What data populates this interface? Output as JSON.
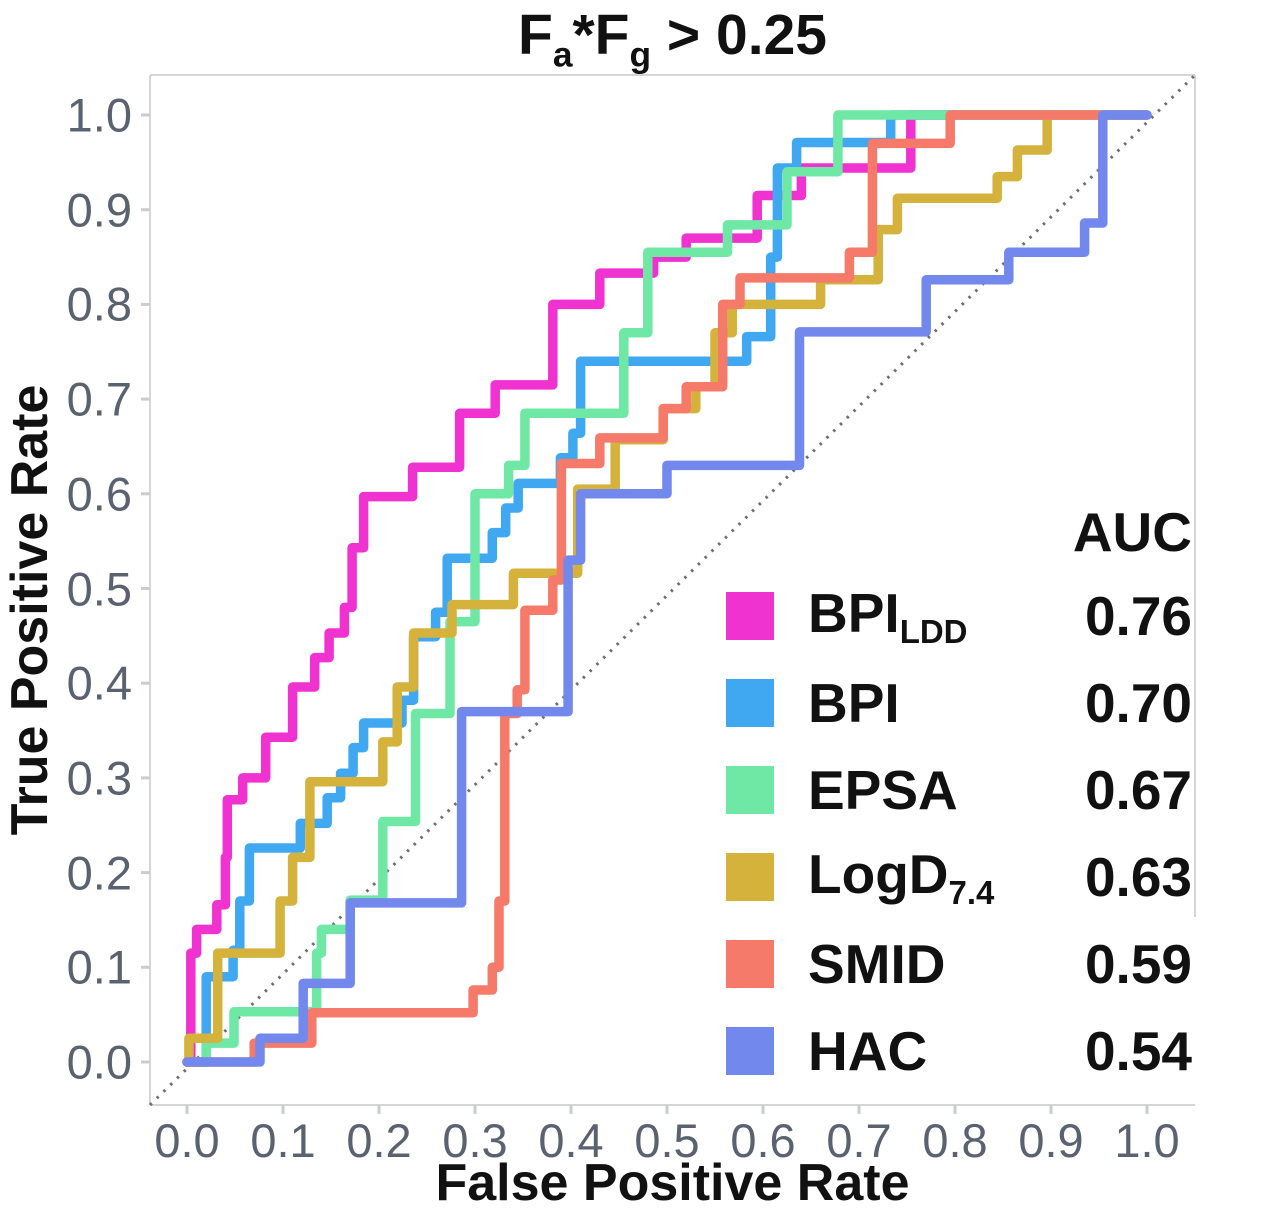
{
  "title": {
    "f1": "F",
    "f1_sub": "a",
    "mid": "*F",
    "f2_sub": "g",
    "tail": " > 0.25"
  },
  "axes": {
    "x_label": "False Positive Rate",
    "y_label": "True Positive Rate",
    "x_ticks": [
      "0.0",
      "0.1",
      "0.2",
      "0.3",
      "0.4",
      "0.5",
      "0.6",
      "0.7",
      "0.8",
      "0.9",
      "1.0"
    ],
    "y_ticks": [
      "0.0",
      "0.1",
      "0.2",
      "0.3",
      "0.4",
      "0.5",
      "0.6",
      "0.7",
      "0.8",
      "0.9",
      "1.0"
    ],
    "x_tick_values": [
      0,
      0.1,
      0.2,
      0.3,
      0.4,
      0.5,
      0.6,
      0.7,
      0.8,
      0.9,
      1.0
    ],
    "y_tick_values": [
      0,
      0.1,
      0.2,
      0.3,
      0.4,
      0.5,
      0.6,
      0.7,
      0.8,
      0.9,
      1.0
    ]
  },
  "legend": {
    "header": "AUC",
    "items": [
      {
        "label": "BPI",
        "sub": "LDD",
        "auc": "0.76",
        "color": "#F032D0"
      },
      {
        "label": "BPI",
        "sub": "",
        "auc": "0.70",
        "color": "#3FA8F0"
      },
      {
        "label": "EPSA",
        "sub": "",
        "auc": "0.67",
        "color": "#6FE8A5"
      },
      {
        "label": "LogD",
        "sub": "7.4",
        "auc": "0.63",
        "color": "#D4B23C"
      },
      {
        "label": "SMID",
        "sub": "",
        "auc": "0.59",
        "color": "#F57A6A"
      },
      {
        "label": "HAC",
        "sub": "",
        "auc": "0.54",
        "color": "#7388EC"
      }
    ]
  },
  "chart_data": {
    "type": "line",
    "subtype": "roc-step-curves",
    "title": "Fa*Fg > 0.25",
    "xlabel": "False Positive Rate",
    "ylabel": "True Positive Rate",
    "xlim": [
      0,
      1
    ],
    "ylim": [
      0,
      1
    ],
    "grid": false,
    "legend_position": "lower right",
    "diagonal_reference_line": {
      "style": "dotted",
      "color": "#6e6e6e",
      "from": [
        0,
        0
      ],
      "to": [
        1,
        1
      ]
    },
    "series": [
      {
        "name": "BPI_LDD",
        "auc": 0.76,
        "color": "#F032D0",
        "points": [
          [
            0,
            0
          ],
          [
            0.004,
            0
          ],
          [
            0.004,
            0.115
          ],
          [
            0.01,
            0.115
          ],
          [
            0.01,
            0.14
          ],
          [
            0.031,
            0.14
          ],
          [
            0.031,
            0.166
          ],
          [
            0.04,
            0.166
          ],
          [
            0.04,
            0.216
          ],
          [
            0.042,
            0.216
          ],
          [
            0.042,
            0.277
          ],
          [
            0.058,
            0.277
          ],
          [
            0.058,
            0.3
          ],
          [
            0.082,
            0.3
          ],
          [
            0.082,
            0.343
          ],
          [
            0.11,
            0.343
          ],
          [
            0.11,
            0.396
          ],
          [
            0.133,
            0.396
          ],
          [
            0.133,
            0.427
          ],
          [
            0.148,
            0.427
          ],
          [
            0.148,
            0.453
          ],
          [
            0.164,
            0.453
          ],
          [
            0.164,
            0.48
          ],
          [
            0.172,
            0.48
          ],
          [
            0.172,
            0.543
          ],
          [
            0.184,
            0.543
          ],
          [
            0.184,
            0.597
          ],
          [
            0.235,
            0.597
          ],
          [
            0.235,
            0.628
          ],
          [
            0.284,
            0.628
          ],
          [
            0.284,
            0.685
          ],
          [
            0.321,
            0.685
          ],
          [
            0.321,
            0.715
          ],
          [
            0.381,
            0.715
          ],
          [
            0.381,
            0.8
          ],
          [
            0.43,
            0.8
          ],
          [
            0.43,
            0.833
          ],
          [
            0.486,
            0.833
          ],
          [
            0.486,
            0.85
          ],
          [
            0.52,
            0.85
          ],
          [
            0.52,
            0.87
          ],
          [
            0.594,
            0.87
          ],
          [
            0.594,
            0.915
          ],
          [
            0.64,
            0.915
          ],
          [
            0.64,
            0.944
          ],
          [
            0.754,
            0.944
          ],
          [
            0.754,
            1.0
          ],
          [
            1.0,
            1.0
          ]
        ]
      },
      {
        "name": "BPI",
        "auc": 0.7,
        "color": "#3FA8F0",
        "points": [
          [
            0,
            0
          ],
          [
            0.02,
            0
          ],
          [
            0.02,
            0.09
          ],
          [
            0.048,
            0.09
          ],
          [
            0.048,
            0.118
          ],
          [
            0.055,
            0.118
          ],
          [
            0.055,
            0.17
          ],
          [
            0.065,
            0.17
          ],
          [
            0.065,
            0.226
          ],
          [
            0.118,
            0.226
          ],
          [
            0.118,
            0.252
          ],
          [
            0.146,
            0.252
          ],
          [
            0.146,
            0.279
          ],
          [
            0.16,
            0.279
          ],
          [
            0.16,
            0.305
          ],
          [
            0.173,
            0.305
          ],
          [
            0.173,
            0.332
          ],
          [
            0.184,
            0.332
          ],
          [
            0.184,
            0.358
          ],
          [
            0.224,
            0.358
          ],
          [
            0.224,
            0.382
          ],
          [
            0.236,
            0.382
          ],
          [
            0.236,
            0.449
          ],
          [
            0.259,
            0.449
          ],
          [
            0.259,
            0.475
          ],
          [
            0.271,
            0.475
          ],
          [
            0.271,
            0.532
          ],
          [
            0.318,
            0.532
          ],
          [
            0.318,
            0.559
          ],
          [
            0.332,
            0.559
          ],
          [
            0.332,
            0.585
          ],
          [
            0.345,
            0.585
          ],
          [
            0.345,
            0.611
          ],
          [
            0.389,
            0.611
          ],
          [
            0.389,
            0.638
          ],
          [
            0.402,
            0.638
          ],
          [
            0.402,
            0.664
          ],
          [
            0.41,
            0.664
          ],
          [
            0.41,
            0.74
          ],
          [
            0.583,
            0.74
          ],
          [
            0.583,
            0.766
          ],
          [
            0.608,
            0.766
          ],
          [
            0.608,
            0.85
          ],
          [
            0.615,
            0.85
          ],
          [
            0.615,
            0.944
          ],
          [
            0.635,
            0.944
          ],
          [
            0.635,
            0.971
          ],
          [
            0.733,
            0.971
          ],
          [
            0.733,
            1.0
          ],
          [
            1.0,
            1.0
          ]
        ]
      },
      {
        "name": "EPSA",
        "auc": 0.67,
        "color": "#6FE8A5",
        "points": [
          [
            0,
            0
          ],
          [
            0.02,
            0
          ],
          [
            0.02,
            0.02
          ],
          [
            0.049,
            0.02
          ],
          [
            0.049,
            0.053
          ],
          [
            0.135,
            0.053
          ],
          [
            0.135,
            0.115
          ],
          [
            0.14,
            0.115
          ],
          [
            0.14,
            0.14
          ],
          [
            0.17,
            0.14
          ],
          [
            0.17,
            0.171
          ],
          [
            0.204,
            0.171
          ],
          [
            0.204,
            0.254
          ],
          [
            0.238,
            0.254
          ],
          [
            0.238,
            0.368
          ],
          [
            0.274,
            0.368
          ],
          [
            0.274,
            0.465
          ],
          [
            0.3,
            0.465
          ],
          [
            0.3,
            0.6
          ],
          [
            0.335,
            0.6
          ],
          [
            0.335,
            0.63
          ],
          [
            0.352,
            0.63
          ],
          [
            0.352,
            0.685
          ],
          [
            0.455,
            0.685
          ],
          [
            0.455,
            0.77
          ],
          [
            0.48,
            0.77
          ],
          [
            0.48,
            0.855
          ],
          [
            0.563,
            0.855
          ],
          [
            0.563,
            0.884
          ],
          [
            0.625,
            0.884
          ],
          [
            0.625,
            0.94
          ],
          [
            0.678,
            0.94
          ],
          [
            0.678,
            1.0
          ],
          [
            1.0,
            1.0
          ]
        ]
      },
      {
        "name": "LogD_7.4",
        "auc": 0.63,
        "color": "#D4B23C",
        "points": [
          [
            0,
            0
          ],
          [
            0.002,
            0
          ],
          [
            0.002,
            0.025
          ],
          [
            0.032,
            0.025
          ],
          [
            0.032,
            0.115
          ],
          [
            0.097,
            0.115
          ],
          [
            0.097,
            0.17
          ],
          [
            0.11,
            0.17
          ],
          [
            0.11,
            0.216
          ],
          [
            0.128,
            0.216
          ],
          [
            0.128,
            0.296
          ],
          [
            0.204,
            0.296
          ],
          [
            0.204,
            0.338
          ],
          [
            0.219,
            0.338
          ],
          [
            0.219,
            0.396
          ],
          [
            0.236,
            0.396
          ],
          [
            0.236,
            0.453
          ],
          [
            0.276,
            0.453
          ],
          [
            0.276,
            0.483
          ],
          [
            0.34,
            0.483
          ],
          [
            0.34,
            0.516
          ],
          [
            0.407,
            0.516
          ],
          [
            0.407,
            0.605
          ],
          [
            0.446,
            0.605
          ],
          [
            0.446,
            0.657
          ],
          [
            0.496,
            0.657
          ],
          [
            0.496,
            0.69
          ],
          [
            0.53,
            0.69
          ],
          [
            0.53,
            0.713
          ],
          [
            0.55,
            0.713
          ],
          [
            0.55,
            0.77
          ],
          [
            0.568,
            0.77
          ],
          [
            0.568,
            0.8
          ],
          [
            0.66,
            0.8
          ],
          [
            0.66,
            0.826
          ],
          [
            0.72,
            0.826
          ],
          [
            0.72,
            0.879
          ],
          [
            0.74,
            0.879
          ],
          [
            0.74,
            0.912
          ],
          [
            0.844,
            0.912
          ],
          [
            0.844,
            0.935
          ],
          [
            0.865,
            0.935
          ],
          [
            0.865,
            0.963
          ],
          [
            0.896,
            0.963
          ],
          [
            0.896,
            1.0
          ],
          [
            1.0,
            1.0
          ]
        ]
      },
      {
        "name": "SMID",
        "auc": 0.59,
        "color": "#F57A6A",
        "points": [
          [
            0,
            0
          ],
          [
            0.07,
            0
          ],
          [
            0.07,
            0.02
          ],
          [
            0.13,
            0.02
          ],
          [
            0.13,
            0.052
          ],
          [
            0.298,
            0.052
          ],
          [
            0.298,
            0.076
          ],
          [
            0.318,
            0.076
          ],
          [
            0.318,
            0.1
          ],
          [
            0.325,
            0.1
          ],
          [
            0.325,
            0.17
          ],
          [
            0.331,
            0.17
          ],
          [
            0.331,
            0.368
          ],
          [
            0.344,
            0.368
          ],
          [
            0.344,
            0.393
          ],
          [
            0.352,
            0.393
          ],
          [
            0.352,
            0.477
          ],
          [
            0.381,
            0.477
          ],
          [
            0.381,
            0.509
          ],
          [
            0.39,
            0.509
          ],
          [
            0.39,
            0.632
          ],
          [
            0.43,
            0.632
          ],
          [
            0.43,
            0.659
          ],
          [
            0.496,
            0.659
          ],
          [
            0.496,
            0.69
          ],
          [
            0.52,
            0.69
          ],
          [
            0.52,
            0.713
          ],
          [
            0.558,
            0.713
          ],
          [
            0.558,
            0.8
          ],
          [
            0.576,
            0.8
          ],
          [
            0.576,
            0.828
          ],
          [
            0.69,
            0.828
          ],
          [
            0.69,
            0.855
          ],
          [
            0.714,
            0.855
          ],
          [
            0.714,
            0.97
          ],
          [
            0.795,
            0.97
          ],
          [
            0.795,
            1.0
          ],
          [
            1.0,
            1.0
          ]
        ]
      },
      {
        "name": "HAC",
        "auc": 0.54,
        "color": "#7388EC",
        "points": [
          [
            0,
            0
          ],
          [
            0.076,
            0
          ],
          [
            0.076,
            0.025
          ],
          [
            0.121,
            0.025
          ],
          [
            0.121,
            0.083
          ],
          [
            0.17,
            0.083
          ],
          [
            0.17,
            0.168
          ],
          [
            0.286,
            0.168
          ],
          [
            0.286,
            0.37
          ],
          [
            0.397,
            0.37
          ],
          [
            0.397,
            0.53
          ],
          [
            0.41,
            0.53
          ],
          [
            0.41,
            0.6
          ],
          [
            0.5,
            0.6
          ],
          [
            0.5,
            0.63
          ],
          [
            0.638,
            0.63
          ],
          [
            0.638,
            0.771
          ],
          [
            0.77,
            0.771
          ],
          [
            0.77,
            0.826
          ],
          [
            0.856,
            0.826
          ],
          [
            0.856,
            0.855
          ],
          [
            0.935,
            0.855
          ],
          [
            0.935,
            0.886
          ],
          [
            0.954,
            0.886
          ],
          [
            0.954,
            1.0
          ],
          [
            1.0,
            1.0
          ]
        ]
      }
    ]
  },
  "style": {
    "spine_color": "#d6d6d6",
    "tick_mark_color": "#c9ccd1",
    "tick_label_color": "#5a6270",
    "curve_width": 9.5
  }
}
